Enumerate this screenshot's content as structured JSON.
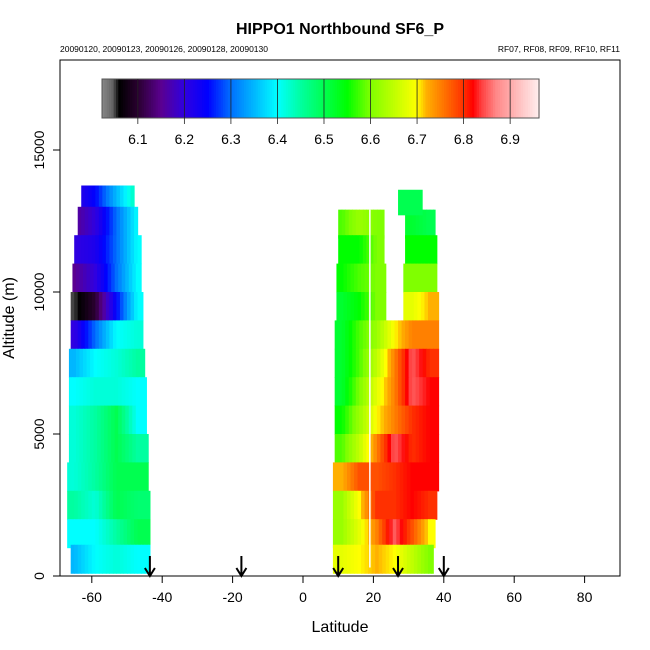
{
  "chart_data": {
    "type": "heatmap",
    "title": "HIPPO1 Northbound SF6_P",
    "subtitle_left": "20090120, 20090123, 20090126, 20090128, 20090130",
    "subtitle_right": "RF07, RF08, RF09, RF10, RF11",
    "xlabel": "Latitude",
    "ylabel": "Altitude (m)",
    "xlim": [
      -72,
      87
    ],
    "ylim": [
      0,
      18200
    ],
    "xticks": [
      -60,
      -40,
      -20,
      0,
      20,
      40,
      60,
      80
    ],
    "xtick_labels": [
      "-60",
      "-40",
      "-20",
      "0",
      "20",
      "40",
      "60",
      "80"
    ],
    "yticks": [
      0,
      5000,
      10000,
      15000
    ],
    "ytick_labels": [
      "0",
      "5000",
      "10000",
      "15000"
    ],
    "colorbar": {
      "range": [
        6.023,
        6.962
      ],
      "ticks": [
        6.1,
        6.2,
        6.3,
        6.4,
        6.5,
        6.6,
        6.7,
        6.8,
        6.9
      ],
      "tick_labels": [
        "6.1",
        "6.2",
        "6.3",
        "6.4",
        "6.5",
        "6.6",
        "6.7",
        "6.8",
        "6.9"
      ],
      "stops": [
        [
          6.023,
          "#888888"
        ],
        [
          6.045,
          "#666666"
        ],
        [
          6.06,
          "#000000"
        ],
        [
          6.1,
          "#2a0030"
        ],
        [
          6.15,
          "#5a0090"
        ],
        [
          6.2,
          "#3000e0"
        ],
        [
          6.25,
          "#0000ff"
        ],
        [
          6.3,
          "#0070ff"
        ],
        [
          6.4,
          "#00ffff"
        ],
        [
          6.45,
          "#00ffa0"
        ],
        [
          6.5,
          "#00ff50"
        ],
        [
          6.55,
          "#00ff00"
        ],
        [
          6.6,
          "#80ff00"
        ],
        [
          6.7,
          "#ffff00"
        ],
        [
          6.72,
          "#ffb000"
        ],
        [
          6.8,
          "#ff3000"
        ],
        [
          6.82,
          "#ff0000"
        ],
        [
          6.84,
          "#ff4444"
        ],
        [
          6.87,
          "#ff8888"
        ],
        [
          6.9,
          "#ffaaaa"
        ],
        [
          6.93,
          "#ffcccc"
        ],
        [
          6.962,
          "#ffeeee"
        ]
      ]
    },
    "row_height_m": 1000,
    "blocks": [
      {
        "name": "southern-profile",
        "columns_lat": [
          -65,
          -59,
          -53,
          -47
        ],
        "rows": [
          {
            "alt": 13250,
            "lo": -63,
            "hi": -48,
            "v": [
              6.2,
              6.25,
              6.35,
              6.45
            ]
          },
          {
            "alt": 12500,
            "lo": -64,
            "hi": -47,
            "v": [
              6.15,
              6.2,
              6.3,
              6.4
            ]
          },
          {
            "alt": 11500,
            "lo": -65,
            "hi": -46,
            "v": [
              6.2,
              6.22,
              6.3,
              6.4
            ]
          },
          {
            "alt": 10500,
            "lo": -65.5,
            "hi": -46,
            "v": [
              6.15,
              6.2,
              6.3,
              6.4
            ]
          },
          {
            "alt": 9500,
            "lo": -66,
            "hi": -45.5,
            "v": [
              6.05,
              6.1,
              6.25,
              6.4
            ]
          },
          {
            "alt": 8500,
            "lo": -66,
            "hi": -45.5,
            "v": [
              6.2,
              6.3,
              6.4,
              6.42
            ]
          },
          {
            "alt": 7500,
            "lo": -66.5,
            "hi": -45,
            "v": [
              6.35,
              6.4,
              6.42,
              6.45
            ]
          },
          {
            "alt": 6500,
            "lo": -66.5,
            "hi": -44.5,
            "v": [
              6.4,
              6.42,
              6.42,
              6.4
            ]
          },
          {
            "alt": 5500,
            "lo": -66.5,
            "hi": -44.5,
            "v": [
              6.42,
              6.45,
              6.5,
              6.4
            ]
          },
          {
            "alt": 4500,
            "lo": -66.5,
            "hi": -44,
            "v": [
              6.42,
              6.45,
              6.5,
              6.45
            ]
          },
          {
            "alt": 3500,
            "lo": -67,
            "hi": -44,
            "v": [
              6.42,
              6.45,
              6.5,
              6.5
            ]
          },
          {
            "alt": 2500,
            "lo": -67,
            "hi": -43.5,
            "v": [
              6.45,
              6.42,
              6.5,
              6.48
            ]
          },
          {
            "alt": 1500,
            "lo": -67,
            "hi": -43.5,
            "v": [
              6.4,
              6.4,
              6.45,
              6.5
            ]
          },
          {
            "alt": 600,
            "lo": -66,
            "hi": -43.5,
            "v": [
              6.35,
              6.4,
              6.42,
              6.4
            ]
          }
        ]
      },
      {
        "name": "northern-profile",
        "columns_lat": [
          11,
          16,
          21,
          26,
          31,
          36
        ],
        "rows": [
          {
            "alt": 12400,
            "lo": 10,
            "hi": 37.5,
            "v": [
              6.58,
              6.62,
              6.6,
              null,
              6.52,
              6.5
            ]
          },
          {
            "alt": 11500,
            "lo": 10,
            "hi": 38,
            "v": [
              6.55,
              6.55,
              6.6,
              null,
              6.55,
              6.55
            ]
          },
          {
            "alt": 10500,
            "lo": 9.5,
            "hi": 38,
            "v": [
              6.55,
              6.58,
              6.6,
              null,
              6.6,
              6.6
            ]
          },
          {
            "alt": 9500,
            "lo": 9.5,
            "hi": 38.5,
            "v": [
              6.52,
              6.55,
              6.6,
              null,
              6.68,
              6.72
            ]
          },
          {
            "alt": 8500,
            "lo": 9,
            "hi": 38.5,
            "v": [
              6.52,
              6.58,
              6.62,
              6.7,
              6.75,
              6.75
            ]
          },
          {
            "alt": 7500,
            "lo": 9,
            "hi": 38.5,
            "v": [
              6.52,
              6.58,
              6.65,
              6.75,
              6.85,
              6.8
            ]
          },
          {
            "alt": 6500,
            "lo": 9,
            "hi": 38.5,
            "v": [
              6.52,
              6.6,
              6.68,
              6.75,
              6.85,
              6.82
            ]
          },
          {
            "alt": 5500,
            "lo": 9,
            "hi": 38.5,
            "v": [
              6.55,
              6.62,
              6.7,
              6.75,
              6.8,
              6.82
            ]
          },
          {
            "alt": 4500,
            "lo": 9,
            "hi": 38.5,
            "v": [
              6.58,
              6.65,
              6.75,
              6.85,
              6.8,
              6.82
            ]
          },
          {
            "alt": 3500,
            "lo": 8.5,
            "hi": 38.5,
            "v": [
              6.72,
              6.78,
              6.78,
              6.8,
              6.82,
              6.82
            ]
          },
          {
            "alt": 2500,
            "lo": 8.5,
            "hi": 38,
            "v": [
              6.62,
              6.7,
              6.8,
              6.8,
              6.82,
              6.8
            ]
          },
          {
            "alt": 1500,
            "lo": 8.5,
            "hi": 37.5,
            "v": [
              6.62,
              6.68,
              6.75,
              6.85,
              6.78,
              6.7
            ]
          },
          {
            "alt": 600,
            "lo": 8.5,
            "hi": 37,
            "v": [
              6.68,
              6.7,
              6.72,
              6.7,
              6.65,
              6.6
            ]
          }
        ]
      }
    ],
    "northern_top_right": {
      "alt": 13100,
      "lo": 27,
      "hi": 34,
      "v": 6.5
    },
    "flight_divider_lat": 19,
    "arrows_lat": [
      -43.5,
      -17.5,
      10,
      27,
      40
    ]
  }
}
